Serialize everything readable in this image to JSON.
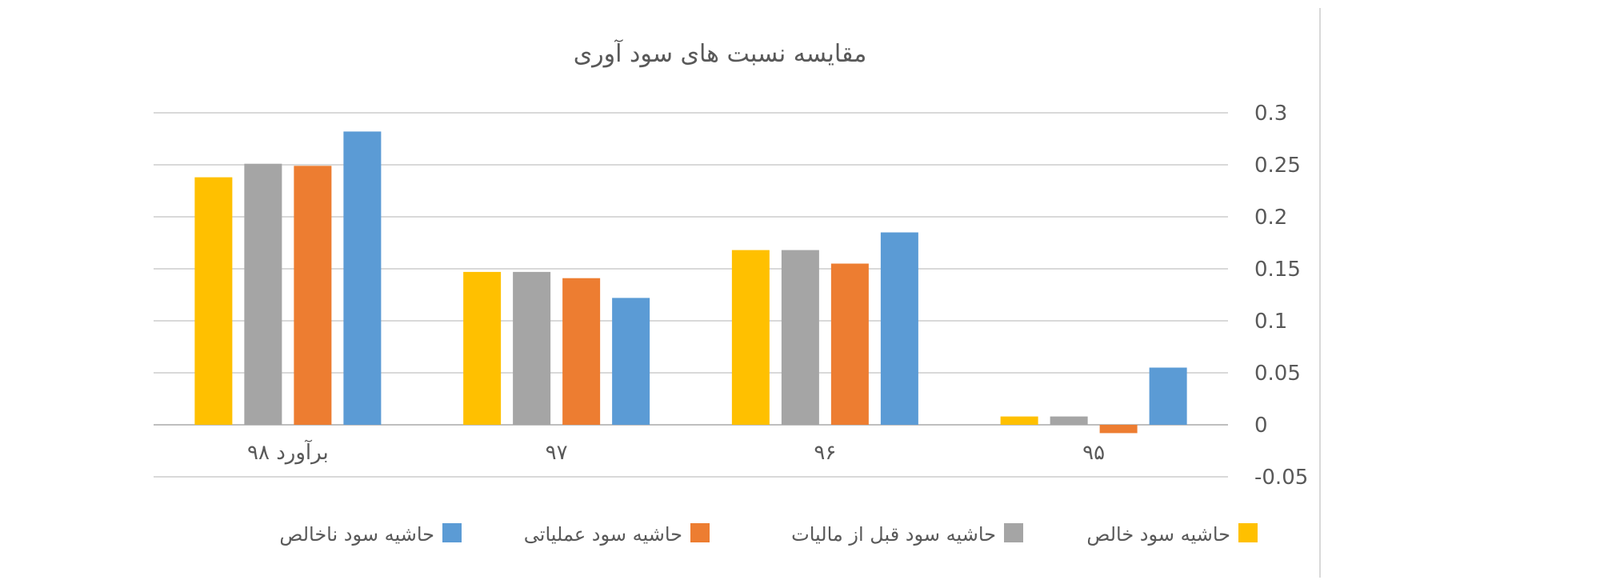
{
  "chart_data": {
    "type": "bar",
    "title": "مقایسه نسبت های سود آوری",
    "xlabel": "",
    "ylabel": "",
    "categories": [
      "۹۵",
      "۹۶",
      "۹۷",
      "برآورد ۹۸"
    ],
    "category_order": "right-to-left",
    "y_axis_side": "right",
    "ylim": [
      -0.05,
      0.3
    ],
    "yticks": [
      0.3,
      0.25,
      0.2,
      0.15,
      0.1,
      0.05,
      0,
      -0.05
    ],
    "ytick_labels": [
      "0.3",
      "0.25",
      "0.2",
      "0.15",
      "0.1",
      "0.05",
      "0",
      "-0.05"
    ],
    "grid": true,
    "legend_position": "bottom",
    "series": [
      {
        "name": "حاشیه سود ناخالص",
        "color": "#5B9BD5",
        "values": [
          0.055,
          0.185,
          0.122,
          0.282
        ]
      },
      {
        "name": "حاشیه سود عملیاتی",
        "color": "#ED7D31",
        "values": [
          -0.008,
          0.155,
          0.141,
          0.249
        ]
      },
      {
        "name": "حاشیه سود قبل از مالیات",
        "color": "#A5A5A5",
        "values": [
          0.008,
          0.168,
          0.147,
          0.251
        ]
      },
      {
        "name": "حاشیه سود خالص",
        "color": "#FFC000",
        "values": [
          0.008,
          0.168,
          0.147,
          0.238
        ]
      }
    ]
  }
}
